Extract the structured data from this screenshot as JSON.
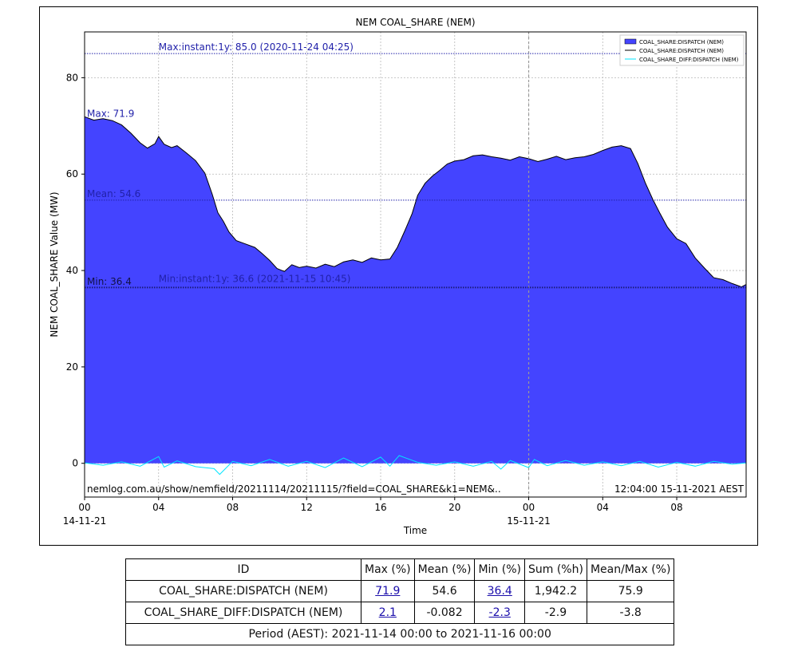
{
  "chart_data": {
    "type": "area",
    "title": "NEM COAL_SHARE (NEM)",
    "xlabel": "Time",
    "ylabel": "NEM COAL_SHARE Value (MW)",
    "x_range_hours": [
      0,
      35.75
    ],
    "ylim": [
      -7,
      89.5
    ],
    "grid": true,
    "legend_placement": "top-right",
    "x_ticks": [
      {
        "hour": 0,
        "label": "00",
        "sublabel": "14-11-21"
      },
      {
        "hour": 4,
        "label": "04"
      },
      {
        "hour": 8,
        "label": "08"
      },
      {
        "hour": 12,
        "label": "12"
      },
      {
        "hour": 16,
        "label": "16"
      },
      {
        "hour": 20,
        "label": "20"
      },
      {
        "hour": 24,
        "label": "00",
        "sublabel": "15-11-21"
      },
      {
        "hour": 28,
        "label": "04"
      },
      {
        "hour": 32,
        "label": "08"
      }
    ],
    "y_ticks": [
      0,
      20,
      40,
      60,
      80
    ],
    "series": [
      {
        "name": "COAL_SHARE:DISPATCH (NEM)",
        "kind": "area",
        "fill": "#4444ff",
        "line": "#000000",
        "points": [
          [
            0,
            71.9
          ],
          [
            0.5,
            71.2
          ],
          [
            1,
            71.5
          ],
          [
            1.5,
            71.1
          ],
          [
            2,
            70.2
          ],
          [
            2.5,
            68.5
          ],
          [
            3,
            66.5
          ],
          [
            3.4,
            65.4
          ],
          [
            3.8,
            66.3
          ],
          [
            4,
            67.8
          ],
          [
            4.3,
            66.2
          ],
          [
            4.7,
            65.5
          ],
          [
            5,
            65.9
          ],
          [
            5.5,
            64.4
          ],
          [
            6,
            62.8
          ],
          [
            6.5,
            60.2
          ],
          [
            6.9,
            55.8
          ],
          [
            7.2,
            52.0
          ],
          [
            7.5,
            50.2
          ],
          [
            7.8,
            48.0
          ],
          [
            8.2,
            46.2
          ],
          [
            8.7,
            45.5
          ],
          [
            9.2,
            44.8
          ],
          [
            9.6,
            43.5
          ],
          [
            10,
            42.1
          ],
          [
            10.4,
            40.4
          ],
          [
            10.8,
            39.8
          ],
          [
            11.2,
            41.2
          ],
          [
            11.6,
            40.6
          ],
          [
            12,
            40.9
          ],
          [
            12.5,
            40.5
          ],
          [
            13,
            41.3
          ],
          [
            13.5,
            40.8
          ],
          [
            14,
            41.8
          ],
          [
            14.5,
            42.2
          ],
          [
            15,
            41.7
          ],
          [
            15.5,
            42.6
          ],
          [
            16,
            42.2
          ],
          [
            16.5,
            42.4
          ],
          [
            16.9,
            44.8
          ],
          [
            17.3,
            48.2
          ],
          [
            17.7,
            51.8
          ],
          [
            18,
            55.6
          ],
          [
            18.4,
            58.1
          ],
          [
            18.8,
            59.6
          ],
          [
            19.2,
            60.8
          ],
          [
            19.6,
            62.1
          ],
          [
            20,
            62.7
          ],
          [
            20.5,
            63.0
          ],
          [
            21,
            63.8
          ],
          [
            21.5,
            64.0
          ],
          [
            22,
            63.6
          ],
          [
            22.5,
            63.3
          ],
          [
            23,
            62.9
          ],
          [
            23.5,
            63.6
          ],
          [
            24,
            63.2
          ],
          [
            24.5,
            62.6
          ],
          [
            25,
            63.1
          ],
          [
            25.5,
            63.7
          ],
          [
            26,
            63.0
          ],
          [
            26.5,
            63.4
          ],
          [
            27,
            63.6
          ],
          [
            27.5,
            64.1
          ],
          [
            28,
            64.9
          ],
          [
            28.5,
            65.6
          ],
          [
            29,
            65.9
          ],
          [
            29.5,
            65.3
          ],
          [
            29.9,
            62.2
          ],
          [
            30.3,
            58.2
          ],
          [
            30.7,
            54.8
          ],
          [
            31.1,
            51.8
          ],
          [
            31.5,
            49.0
          ],
          [
            32,
            46.6
          ],
          [
            32.5,
            45.6
          ],
          [
            33,
            42.6
          ],
          [
            33.5,
            40.5
          ],
          [
            34,
            38.5
          ],
          [
            34.5,
            38.1
          ],
          [
            35,
            37.3
          ],
          [
            35.5,
            36.6
          ],
          [
            35.75,
            37.1
          ]
        ]
      },
      {
        "name": "COAL_SHARE:DISPATCH (NEM)",
        "kind": "line",
        "line": "#000000"
      },
      {
        "name": "COAL_SHARE_DIFF:DISPATCH (NEM)",
        "kind": "line",
        "line": "#00e5ff",
        "points": [
          [
            0,
            0.1
          ],
          [
            1,
            -0.4
          ],
          [
            2,
            0.3
          ],
          [
            3,
            -0.6
          ],
          [
            4,
            1.4
          ],
          [
            4.3,
            -0.8
          ],
          [
            5,
            0.5
          ],
          [
            6,
            -0.7
          ],
          [
            7,
            -1.1
          ],
          [
            7.3,
            -2.3
          ],
          [
            8,
            0.4
          ],
          [
            9,
            -0.5
          ],
          [
            10,
            0.8
          ],
          [
            11,
            -0.6
          ],
          [
            12,
            0.4
          ],
          [
            13,
            -0.9
          ],
          [
            14,
            1.1
          ],
          [
            15,
            -0.7
          ],
          [
            16,
            1.3
          ],
          [
            16.5,
            -0.6
          ],
          [
            17,
            1.6
          ],
          [
            18,
            0.2
          ],
          [
            19,
            -0.4
          ],
          [
            20,
            0.3
          ],
          [
            21,
            -0.6
          ],
          [
            22,
            0.4
          ],
          [
            22.5,
            -1.2
          ],
          [
            23,
            0.6
          ],
          [
            24,
            -0.9
          ],
          [
            24.3,
            0.8
          ],
          [
            25,
            -0.5
          ],
          [
            26,
            0.6
          ],
          [
            27,
            -0.4
          ],
          [
            28,
            0.3
          ],
          [
            29,
            -0.5
          ],
          [
            30,
            0.4
          ],
          [
            31,
            -0.8
          ],
          [
            32,
            0.2
          ],
          [
            33,
            -0.6
          ],
          [
            34,
            0.4
          ],
          [
            35,
            -0.2
          ],
          [
            35.75,
            0.1
          ]
        ]
      }
    ],
    "reference_lines": [
      {
        "value": 85.0,
        "label": "Max:instant:1y: 85.0 (2020-11-24 04:25)",
        "color": "#2222aa"
      },
      {
        "value": 54.6,
        "label": "Mean: 54.6",
        "color": "#2222aa"
      },
      {
        "value": 36.4,
        "label": "Min: 36.4",
        "color": "#111144"
      },
      {
        "value": 36.6,
        "label": "Min:instant:1y: 36.6 (2021-11-15 10:45)",
        "color": "#2222aa"
      }
    ],
    "max_label": {
      "value": 71.9,
      "text": "Max: 71.9"
    },
    "vertical_marker_hour": 24,
    "footer_left": "nemlog.com.au/show/nemfield/20211114/20211115/?field=COAL_SHARE&k1=NEM&..",
    "footer_right": "12:04:00 15-11-2021 AEST"
  },
  "table": {
    "headers": [
      "ID",
      "Max (%)",
      "Mean (%)",
      "Min (%)",
      "Sum (%h)",
      "Mean/Max (%)"
    ],
    "rows": [
      {
        "id": "COAL_SHARE:DISPATCH (NEM)",
        "max": "71.9",
        "mean": "54.6",
        "min": "36.4",
        "sum": "1,942.2",
        "mean_max": "75.9"
      },
      {
        "id": "COAL_SHARE_DIFF:DISPATCH (NEM)",
        "max": "2.1",
        "mean": "-0.082",
        "min": "-2.3",
        "sum": "-2.9",
        "mean_max": "-3.8"
      }
    ],
    "period": "Period (AEST): 2021-11-14 00:00 to 2021-11-16 00:00"
  }
}
